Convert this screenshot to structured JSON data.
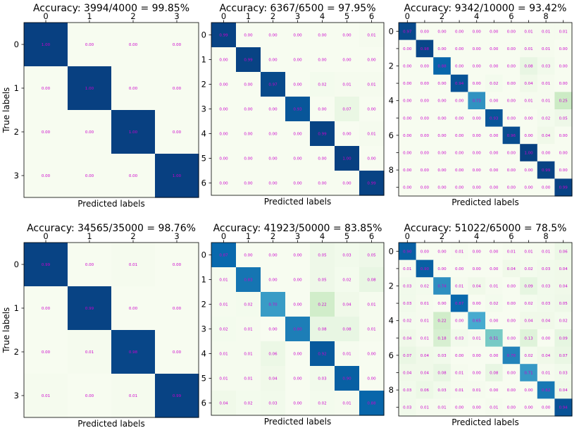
{
  "figure": {
    "xlabel": "Predicted labels",
    "ylabel": "True labels",
    "colormap": "GnBu",
    "cell_text_color": "#cc00cc",
    "grid": false
  },
  "chart_data": [
    {
      "type": "heatmap",
      "title": "Accuracy: 3994/4000 = 99.85%",
      "n": 4,
      "x_ticks": [
        "0",
        "1",
        "2",
        "3"
      ],
      "y_ticks": [
        "0",
        "1",
        "2",
        "3"
      ],
      "values": [
        [
          "1.00",
          "0.00",
          "0.00",
          "0.00"
        ],
        [
          "0.00",
          "1.00",
          "0.00",
          "0.00"
        ],
        [
          "0.00",
          "0.00",
          "1.00",
          "0.00"
        ],
        [
          "0.00",
          "0.00",
          "0.00",
          "1.00"
        ]
      ]
    },
    {
      "type": "heatmap",
      "title": "Accuracy: 6367/6500 = 97.95%",
      "n": 7,
      "x_ticks": [
        "0",
        "1",
        "2",
        "3",
        "4",
        "5",
        "6"
      ],
      "y_ticks": [
        "0",
        "1",
        "2",
        "3",
        "4",
        "5",
        "6"
      ],
      "values": [
        [
          "0.99",
          "0.00",
          "0.00",
          "0.00",
          "0.00",
          "0.00",
          "0.01"
        ],
        [
          "0.00",
          "0.99",
          "0.00",
          "0.00",
          "0.00",
          "0.00",
          "0.00"
        ],
        [
          "0.00",
          "0.00",
          "0.97",
          "0.00",
          "0.02",
          "0.01",
          "0.01"
        ],
        [
          "0.00",
          "0.00",
          "0.00",
          "0.93",
          "0.00",
          "0.07",
          "0.00"
        ],
        [
          "0.00",
          "0.00",
          "0.00",
          "0.00",
          "0.99",
          "0.00",
          "0.01"
        ],
        [
          "0.00",
          "0.00",
          "0.00",
          "0.00",
          "0.00",
          "1.00",
          "0.00"
        ],
        [
          "0.00",
          "0.00",
          "0.00",
          "0.00",
          "0.00",
          "0.00",
          "0.99"
        ]
      ]
    },
    {
      "type": "heatmap",
      "title": "Accuracy: 9342/10000 = 93.42%",
      "n": 10,
      "x_ticks": [
        "0",
        "",
        "2",
        "",
        "4",
        "",
        "6",
        "",
        "8",
        ""
      ],
      "y_ticks": [
        "0",
        "",
        "2",
        "",
        "4",
        "",
        "6",
        "",
        "8",
        ""
      ],
      "values": [
        [
          "0.97",
          "0.00",
          "0.00",
          "0.00",
          "0.00",
          "0.00",
          "0.00",
          "0.01",
          "0.01",
          "0.01"
        ],
        [
          "0.00",
          "0.98",
          "0.00",
          "0.00",
          "0.00",
          "0.00",
          "0.00",
          "0.01",
          "0.01",
          "0.00"
        ],
        [
          "0.00",
          "0.00",
          "0.88",
          "0.00",
          "0.00",
          "0.00",
          "0.00",
          "0.08",
          "0.03",
          "0.00"
        ],
        [
          "0.00",
          "0.00",
          "0.00",
          "0.94",
          "0.00",
          "0.02",
          "0.00",
          "0.04",
          "0.01",
          "0.00"
        ],
        [
          "0.00",
          "0.00",
          "0.00",
          "0.00",
          "0.73",
          "0.00",
          "0.00",
          "0.01",
          "0.01",
          "0.25"
        ],
        [
          "0.00",
          "0.00",
          "0.00",
          "0.00",
          "0.00",
          "0.93",
          "0.00",
          "0.00",
          "0.02",
          "0.05"
        ],
        [
          "0.00",
          "0.00",
          "0.00",
          "0.00",
          "0.00",
          "0.00",
          "0.96",
          "0.00",
          "0.04",
          "0.00"
        ],
        [
          "0.00",
          "0.00",
          "0.00",
          "0.00",
          "0.00",
          "0.00",
          "0.00",
          "1.00",
          "0.00",
          "0.00"
        ],
        [
          "0.00",
          "0.00",
          "0.00",
          "0.00",
          "0.00",
          "0.00",
          "0.00",
          "0.00",
          "0.99",
          "0.00"
        ],
        [
          "0.00",
          "0.00",
          "0.00",
          "0.00",
          "0.00",
          "0.00",
          "0.00",
          "0.00",
          "0.00",
          "0.99"
        ]
      ]
    },
    {
      "type": "heatmap",
      "title": "Accuracy: 34565/35000 = 98.76%",
      "n": 4,
      "x_ticks": [
        "0",
        "1",
        "2",
        "3"
      ],
      "y_ticks": [
        "0",
        "1",
        "2",
        "3"
      ],
      "values": [
        [
          "0.99",
          "0.00",
          "0.01",
          "0.00"
        ],
        [
          "0.00",
          "0.99",
          "0.00",
          "0.00"
        ],
        [
          "0.00",
          "0.01",
          "0.98",
          "0.00"
        ],
        [
          "0.01",
          "0.00",
          "0.01",
          "0.99"
        ]
      ]
    },
    {
      "type": "heatmap",
      "title": "Accuracy: 41923/50000 = 83.85%",
      "n": 7,
      "x_ticks": [
        "0",
        "1",
        "2",
        "3",
        "4",
        "5",
        "6"
      ],
      "y_ticks": [
        "0",
        "1",
        "2",
        "3",
        "4",
        "5",
        "6"
      ],
      "values": [
        [
          "0.87",
          "0.00",
          "0.00",
          "0.00",
          "0.05",
          "0.03",
          "0.05"
        ],
        [
          "0.01",
          "0.83",
          "0.00",
          "0.00",
          "0.05",
          "0.02",
          "0.08"
        ],
        [
          "0.01",
          "0.02",
          "0.70",
          "0.00",
          "0.22",
          "0.04",
          "0.01"
        ],
        [
          "0.02",
          "0.01",
          "0.00",
          "0.80",
          "0.08",
          "0.08",
          "0.01"
        ],
        [
          "0.01",
          "0.01",
          "0.06",
          "0.00",
          "0.92",
          "0.01",
          "0.00"
        ],
        [
          "0.01",
          "0.01",
          "0.04",
          "0.00",
          "0.03",
          "0.90",
          "0.00"
        ],
        [
          "0.04",
          "0.02",
          "0.03",
          "0.00",
          "0.02",
          "0.01",
          "0.88"
        ]
      ]
    },
    {
      "type": "heatmap",
      "title": "Accuracy: 51022/65000 = 78.5%",
      "n": 10,
      "x_ticks": [
        "0",
        "",
        "2",
        "",
        "4",
        "",
        "6",
        "",
        "8",
        ""
      ],
      "y_ticks": [
        "0",
        "",
        "2",
        "",
        "4",
        "",
        "6",
        "",
        "8",
        ""
      ],
      "values": [
        [
          "0.90",
          "0.00",
          "0.00",
          "0.01",
          "0.00",
          "0.00",
          "0.01",
          "0.01",
          "0.01",
          "0.06"
        ],
        [
          "0.01",
          "0.90",
          "0.00",
          "0.00",
          "0.00",
          "0.00",
          "0.04",
          "0.02",
          "0.03",
          "0.04"
        ],
        [
          "0.03",
          "0.02",
          "0.74",
          "0.01",
          "0.04",
          "0.01",
          "0.00",
          "0.09",
          "0.03",
          "0.04"
        ],
        [
          "0.03",
          "0.01",
          "0.00",
          "0.87",
          "0.00",
          "0.02",
          "0.00",
          "0.02",
          "0.03",
          "0.05"
        ],
        [
          "0.02",
          "0.01",
          "0.22",
          "0.00",
          "0.65",
          "0.00",
          "0.00",
          "0.04",
          "0.04",
          "0.02"
        ],
        [
          "0.04",
          "0.01",
          "0.18",
          "0.03",
          "0.01",
          "0.51",
          "0.00",
          "0.13",
          "0.00",
          "0.09"
        ],
        [
          "0.07",
          "0.04",
          "0.03",
          "0.00",
          "0.00",
          "0.00",
          "0.78",
          "0.02",
          "0.04",
          "0.07"
        ],
        [
          "0.04",
          "0.04",
          "0.08",
          "0.01",
          "0.00",
          "0.08",
          "0.00",
          "0.71",
          "0.01",
          "0.03"
        ],
        [
          "0.03",
          "0.06",
          "0.03",
          "0.01",
          "0.01",
          "0.00",
          "0.00",
          "0.00",
          "0.82",
          "0.04"
        ],
        [
          "0.03",
          "0.01",
          "0.01",
          "0.00",
          "0.00",
          "0.01",
          "0.00",
          "0.00",
          "0.00",
          "0.94"
        ]
      ]
    }
  ]
}
